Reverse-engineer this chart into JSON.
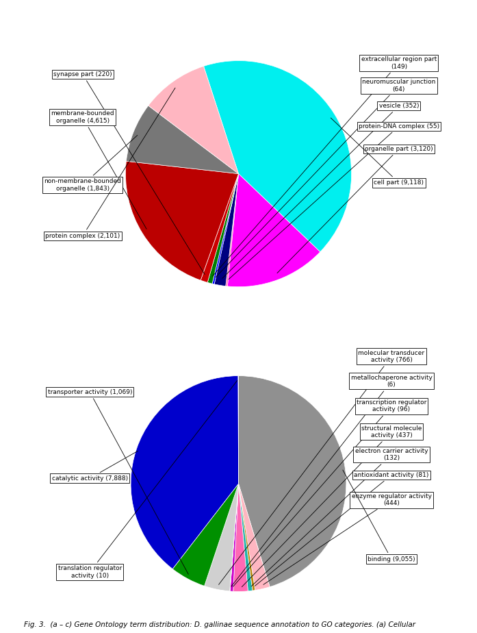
{
  "chart_a": {
    "slices": [
      {
        "label": "cell part (9,118)",
        "value": 9118,
        "color": "#00EFEF"
      },
      {
        "label": "organelle part (3,120)",
        "value": 3120,
        "color": "#FF00FF"
      },
      {
        "label": "protein-DNA complex (55)",
        "value": 55,
        "color": "#FF69B4"
      },
      {
        "label": "vesicle (352)",
        "value": 352,
        "color": "#000080"
      },
      {
        "label": "neuromuscular junction (64)",
        "value": 64,
        "color": "#0000FF"
      },
      {
        "label": "extracellular region part (149)",
        "value": 149,
        "color": "#008000"
      },
      {
        "label": "synapse part (220)",
        "value": 220,
        "color": "#CC0000"
      },
      {
        "label": "membrane-bounded organelle (4,615)",
        "value": 4615,
        "color": "#BB0000"
      },
      {
        "label": "non-membrane-bounded organelle (1,843)",
        "value": 1843,
        "color": "#777777"
      },
      {
        "label": "protein complex (2,101)",
        "value": 2101,
        "color": "#FFB6C1"
      }
    ],
    "start_angle": 108,
    "label_annotations": [
      {
        "label": "extracellular region part\n(149)",
        "side": "right",
        "rank": 0
      },
      {
        "label": "neuromuscular junction\n(64)",
        "side": "right",
        "rank": 1
      },
      {
        "label": "vesicle (352)",
        "side": "right",
        "rank": 2
      },
      {
        "label": "protein-DNA complex (55)",
        "side": "right",
        "rank": 3
      },
      {
        "label": "organelle part (3,120)",
        "side": "right",
        "rank": 4
      },
      {
        "label": "cell part (9,118)",
        "side": "right",
        "rank": 5
      },
      {
        "label": "synapse part (220)",
        "side": "left",
        "rank": 0
      },
      {
        "label": "membrane-bounded\norganelle (4,615)",
        "side": "left",
        "rank": 1
      },
      {
        "label": "non-membrane-bounded\norganelle (1,843)",
        "side": "left",
        "rank": 2
      },
      {
        "label": "protein complex (2,101)",
        "side": "left",
        "rank": 3
      }
    ]
  },
  "chart_b": {
    "slices": [
      {
        "label": "binding (9,055)",
        "value": 9055,
        "color": "#909090"
      },
      {
        "label": "enzyme regulator activity (444)",
        "value": 444,
        "color": "#FFB6C1"
      },
      {
        "label": "antioxidant activity (81)",
        "value": 81,
        "color": "#B8860B"
      },
      {
        "label": "electron carrier activity (132)",
        "value": 132,
        "color": "#20B2AA"
      },
      {
        "label": "structural molecule activity (437)",
        "value": 437,
        "color": "#FF69B4"
      },
      {
        "label": "transcription regulator activity (96)",
        "value": 96,
        "color": "#CC00CC"
      },
      {
        "label": "metallochaperone activity (6)",
        "value": 6,
        "color": "#FFFF00"
      },
      {
        "label": "molecular transducer activity (766)",
        "value": 766,
        "color": "#D0D0D0"
      },
      {
        "label": "transporter activity (1,069)",
        "value": 1069,
        "color": "#009000"
      },
      {
        "label": "catalytic activity (7,888)",
        "value": 7888,
        "color": "#0000CC"
      },
      {
        "label": "translation regulator activity (10)",
        "value": 10,
        "color": "#606060"
      }
    ],
    "start_angle": 90
  },
  "caption": "Fig. 3.  (a – c) Gene Ontology term distribution: D. gallinae sequence annotation to GO categories. (a) Cellular"
}
